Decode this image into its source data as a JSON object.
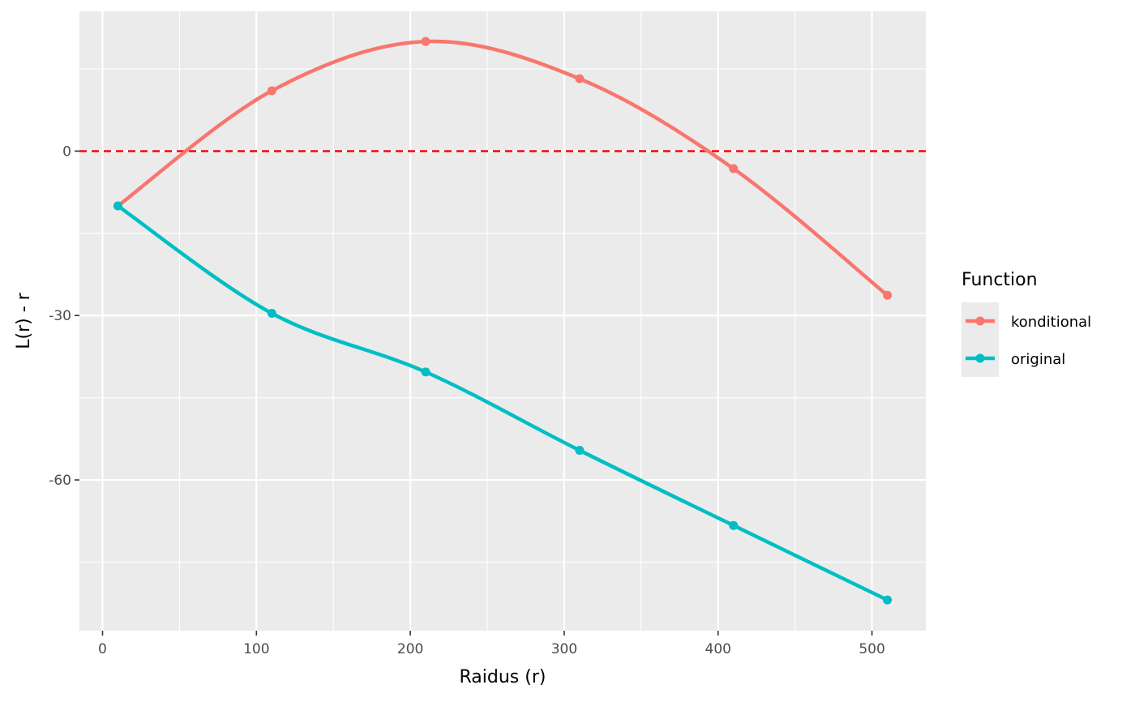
{
  "chart_data": {
    "type": "line",
    "xlabel": "Raidus (r)",
    "ylabel": "L(r) - r",
    "xlim": [
      -15,
      535
    ],
    "ylim": [
      -87.5,
      25.5
    ],
    "x_ticks": [
      0,
      100,
      200,
      300,
      400,
      500
    ],
    "x_tick_labels": [
      "0",
      "100",
      "200",
      "300",
      "400",
      "500"
    ],
    "y_ticks": [
      -60,
      -30,
      0
    ],
    "y_tick_labels": [
      "-60",
      "-30",
      "0"
    ],
    "grid": true,
    "reference_line": {
      "y": 0,
      "style": "dashed",
      "color": "#ee0000"
    },
    "legend": {
      "title": "Function",
      "position": "right"
    },
    "series": [
      {
        "name": "konditional",
        "color": "#f8766d",
        "x": [
          10,
          110,
          210,
          310,
          410,
          510
        ],
        "y": [
          -10,
          11,
          20,
          13.2,
          -3.2,
          -26.3
        ]
      },
      {
        "name": "original",
        "color": "#00bfc4",
        "x": [
          10,
          110,
          210,
          310,
          410,
          510
        ],
        "y": [
          -10,
          -29.6,
          -40.3,
          -54.6,
          -68.3,
          -81.9
        ]
      }
    ]
  }
}
